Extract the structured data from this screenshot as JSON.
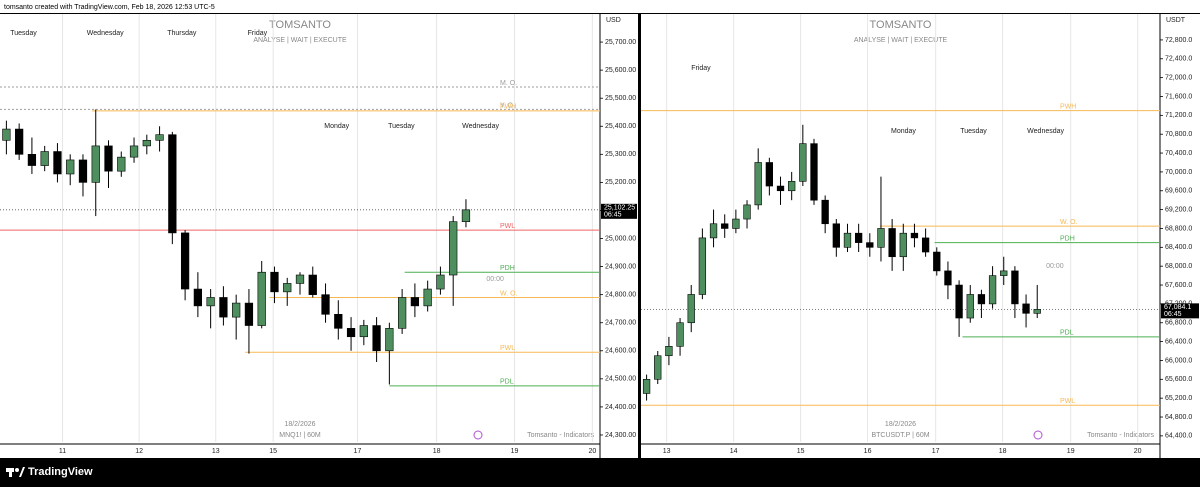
{
  "page": {
    "header": "tomsanto created with TradingView.com, Feb 18, 2026 12:53 UTC-5",
    "footer": "TradingView"
  },
  "chart_data": [
    {
      "type": "candlestick",
      "unit": "USD",
      "watermark_title": "TOMSANTO",
      "watermark_subtitle": "ANALYSE | WAIT | EXECUTE",
      "date": "18/2/2026",
      "symbol": "MNQ1! | 60M",
      "indicator": "Tomsanto - Indicators",
      "up_color": "#4f8f5f",
      "down_color": "#000000",
      "grid": true,
      "xlim": [
        0,
        47
      ],
      "ylim": [
        24275,
        25800
      ],
      "xticks": [
        {
          "value": 4.9,
          "label": "11"
        },
        {
          "value": 10.9,
          "label": "12"
        },
        {
          "value": 16.9,
          "label": "13"
        },
        {
          "value": 21.4,
          "label": "15"
        },
        {
          "value": 28,
          "label": "17"
        },
        {
          "value": 34.2,
          "label": "18"
        },
        {
          "value": 40.3,
          "label": "19"
        },
        {
          "value": 46.4,
          "label": "20"
        }
      ],
      "yticks": [
        {
          "value": 25700,
          "label": "25,700.00"
        },
        {
          "value": 25600,
          "label": "25,600.00"
        },
        {
          "value": 25500,
          "label": "25,500.00"
        },
        {
          "value": 25400,
          "label": "25,400.00"
        },
        {
          "value": 25300,
          "label": "25,300.00"
        },
        {
          "value": 25200,
          "label": "25,200.00"
        },
        {
          "value": 25100,
          "label": "25,100.00"
        },
        {
          "value": 25000,
          "label": "25,000.00"
        },
        {
          "value": 24900,
          "label": "24,900.00"
        },
        {
          "value": 24800,
          "label": "24,800.00"
        },
        {
          "value": 24700,
          "label": "24,700.00"
        },
        {
          "value": 24600,
          "label": "24,600.00"
        },
        {
          "value": 24500,
          "label": "24,500.00"
        },
        {
          "value": 24400,
          "label": "24,400.00"
        },
        {
          "value": 24300,
          "label": "24,300.00"
        }
      ],
      "open": [
        25350,
        25390,
        25300,
        25260,
        25310,
        25230,
        25280,
        25200,
        25330,
        25240,
        25290,
        25330,
        25350,
        25370,
        25020,
        24820,
        24760,
        24790,
        24720,
        24770,
        24690,
        24880,
        24810,
        24840,
        24870,
        24800,
        24730,
        24680,
        24650,
        24690,
        24600,
        24680,
        24790,
        24760,
        24820,
        24870,
        25060
      ],
      "high": [
        25420,
        25410,
        25360,
        25330,
        25340,
        25300,
        25300,
        25460,
        25350,
        25310,
        25360,
        25370,
        25400,
        25380,
        25030,
        24880,
        24820,
        24830,
        24800,
        24820,
        24920,
        24900,
        24860,
        24880,
        24900,
        24840,
        24780,
        24720,
        24710,
        24720,
        24700,
        24820,
        24840,
        24850,
        24900,
        25080,
        25140
      ],
      "low": [
        25300,
        25280,
        25230,
        25240,
        25200,
        25190,
        25150,
        25080,
        25180,
        25220,
        25270,
        25300,
        25310,
        24980,
        24780,
        24720,
        24680,
        24690,
        24640,
        24590,
        24680,
        24770,
        24760,
        24800,
        24790,
        24700,
        24640,
        24600,
        24620,
        24560,
        24480,
        24660,
        24720,
        24740,
        24800,
        24760,
        25040
      ],
      "close": [
        25390,
        25300,
        25260,
        25310,
        25230,
        25280,
        25200,
        25330,
        25240,
        25290,
        25330,
        25350,
        25370,
        25020,
        24820,
        24760,
        24790,
        24720,
        24770,
        24690,
        24880,
        24810,
        24840,
        24870,
        24800,
        24730,
        24680,
        24650,
        24690,
        24600,
        24680,
        24790,
        24760,
        24820,
        24870,
        25060,
        25102.25
      ],
      "levels": [
        {
          "label": "M. O.",
          "value": 25540,
          "color": "#9e9e9e",
          "from": 0,
          "dashed": true
        },
        {
          "label": "Y. O.",
          "value": 25460,
          "color": "#9e9e9e",
          "from": 0,
          "dashed": true
        },
        {
          "label": "PWH",
          "value": 25455,
          "color": "#f7b955",
          "from": 7.2,
          "dashed": false
        },
        {
          "label": "PWL",
          "value": 25030,
          "color": "#f06464",
          "from": 0,
          "dashed": false
        },
        {
          "label": "PDH",
          "value": 24880,
          "color": "#4caf50",
          "from": 31.7,
          "dashed": false
        },
        {
          "label": "W. O.",
          "value": 24790,
          "color": "#f7b955",
          "from": 21.1,
          "dashed": false
        },
        {
          "label": "PWL",
          "value": 24595,
          "color": "#f7b955",
          "from": 19.2,
          "dashed": false
        },
        {
          "label": "PDL",
          "value": 24475,
          "color": "#4caf50",
          "from": 30.5,
          "dashed": false
        }
      ],
      "annotations": [
        {
          "text": "00:00",
          "price": 24855,
          "at": 38.1
        }
      ],
      "price_tag": {
        "value": 25102.25,
        "label": "25,102.25",
        "countdown": "06:45"
      },
      "day_labels": [
        {
          "label": "Tuesday",
          "at": 0.8
        },
        {
          "label": "Wednesday",
          "at": 6.8
        },
        {
          "label": "Thursday",
          "at": 13.1
        },
        {
          "label": "Friday",
          "at": 19.4
        },
        {
          "label": "Monday",
          "at": 25.4
        },
        {
          "label": "Tuesday",
          "at": 30.4
        },
        {
          "label": "Wednesday",
          "at": 36.2
        }
      ]
    },
    {
      "type": "candlestick",
      "unit": "USDT",
      "watermark_title": "TOMSANTO",
      "watermark_subtitle": "ANALYSE | WAIT | EXECUTE",
      "date": "18/2/2026",
      "symbol": "BTCUSDT.P | 60M",
      "indicator": "Tomsanto - Indicators",
      "up_color": "#4f8f5f",
      "down_color": "#000000",
      "grid": true,
      "xlim": [
        0,
        46.5
      ],
      "ylim": [
        64270,
        73350
      ],
      "xticks": [
        {
          "value": 2.3,
          "label": "13"
        },
        {
          "value": 8.3,
          "label": "14"
        },
        {
          "value": 14.3,
          "label": "15"
        },
        {
          "value": 20.3,
          "label": "16"
        },
        {
          "value": 26.4,
          "label": "17"
        },
        {
          "value": 32.4,
          "label": "18"
        },
        {
          "value": 38.5,
          "label": "19"
        },
        {
          "value": 44.5,
          "label": "20"
        }
      ],
      "yticks": [
        {
          "value": 72800,
          "label": "72,800.0"
        },
        {
          "value": 72400,
          "label": "72,400.0"
        },
        {
          "value": 72000,
          "label": "72,000.0"
        },
        {
          "value": 71600,
          "label": "71,600.0"
        },
        {
          "value": 71200,
          "label": "71,200.0"
        },
        {
          "value": 70800,
          "label": "70,800.0"
        },
        {
          "value": 70400,
          "label": "70,400.0"
        },
        {
          "value": 70000,
          "label": "70,000.0"
        },
        {
          "value": 69600,
          "label": "69,600.0"
        },
        {
          "value": 69200,
          "label": "69,200.0"
        },
        {
          "value": 68800,
          "label": "68,800.0"
        },
        {
          "value": 68400,
          "label": "68,400.0"
        },
        {
          "value": 68000,
          "label": "68,000.0"
        },
        {
          "value": 67600,
          "label": "67,600.0"
        },
        {
          "value": 67200,
          "label": "67,200.0"
        },
        {
          "value": 66800,
          "label": "66,800.0"
        },
        {
          "value": 66400,
          "label": "66,400.0"
        },
        {
          "value": 66000,
          "label": "66,000.0"
        },
        {
          "value": 65600,
          "label": "65,600.0"
        },
        {
          "value": 65200,
          "label": "65,200.0"
        },
        {
          "value": 64800,
          "label": "64,800.0"
        },
        {
          "value": 64400,
          "label": "64,400.0"
        }
      ],
      "open": [
        65300,
        65600,
        66100,
        66300,
        66800,
        67400,
        68600,
        68900,
        68800,
        69000,
        69300,
        70200,
        69700,
        69600,
        69800,
        70600,
        69400,
        68900,
        68400,
        68700,
        68500,
        68400,
        68800,
        68200,
        68700,
        68600,
        68300,
        67900,
        67600,
        66900,
        67400,
        67200,
        67800,
        67900,
        67200,
        67000
      ],
      "high": [
        65700,
        66200,
        66500,
        66900,
        67600,
        68800,
        69200,
        69100,
        69200,
        69400,
        70500,
        70300,
        69900,
        70000,
        71000,
        70700,
        69500,
        69000,
        68900,
        68900,
        68700,
        69900,
        69000,
        68900,
        68900,
        68800,
        68400,
        68100,
        67700,
        67600,
        67500,
        68000,
        68200,
        68000,
        67400,
        67600
      ],
      "low": [
        65150,
        65500,
        65900,
        66100,
        66600,
        67300,
        68400,
        68600,
        68700,
        68800,
        69200,
        69500,
        69300,
        69400,
        69700,
        69300,
        68700,
        68200,
        68300,
        68300,
        68200,
        68100,
        67900,
        67900,
        68400,
        68200,
        67800,
        67300,
        66500,
        66800,
        66900,
        67100,
        67600,
        66900,
        66700,
        66900
      ],
      "close": [
        65600,
        66100,
        66300,
        66800,
        67400,
        68600,
        68900,
        68800,
        69000,
        69300,
        70200,
        69700,
        69600,
        69800,
        70600,
        69400,
        68900,
        68400,
        68700,
        68500,
        68400,
        68800,
        68200,
        68700,
        68600,
        68300,
        67900,
        67600,
        66900,
        67400,
        67200,
        67800,
        67900,
        67200,
        67000,
        67084.1
      ],
      "levels": [
        {
          "label": "PWH",
          "value": 71300,
          "color": "#f7b955",
          "from": 0,
          "dashed": false
        },
        {
          "label": "W. O.",
          "value": 68850,
          "color": "#f7b955",
          "from": 21.4,
          "dashed": false
        },
        {
          "label": "PDH",
          "value": 68500,
          "color": "#4caf50",
          "from": 26.3,
          "dashed": false
        },
        {
          "label": "PDL",
          "value": 66500,
          "color": "#4caf50",
          "from": 28.8,
          "dashed": false
        },
        {
          "label": "PWL",
          "value": 65050,
          "color": "#f7b955",
          "from": 0,
          "dashed": false
        }
      ],
      "annotations": [
        {
          "text": "00:00",
          "price": 68000,
          "at": 36.3
        }
      ],
      "price_tag": {
        "value": 67084.1,
        "label": "67,084.1",
        "countdown": "06:45"
      },
      "day_labels": [
        {
          "label": "Friday",
          "at": 4.5
        },
        {
          "label": "Monday",
          "at": 22.4
        },
        {
          "label": "Tuesday",
          "at": 28.6
        },
        {
          "label": "Wednesday",
          "at": 34.6
        }
      ]
    }
  ]
}
